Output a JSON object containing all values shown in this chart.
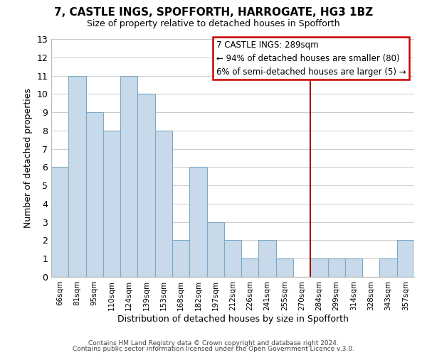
{
  "title": "7, CASTLE INGS, SPOFFORTH, HARROGATE, HG3 1BZ",
  "subtitle": "Size of property relative to detached houses in Spofforth",
  "xlabel": "Distribution of detached houses by size in Spofforth",
  "ylabel": "Number of detached properties",
  "bar_labels": [
    "66sqm",
    "81sqm",
    "95sqm",
    "110sqm",
    "124sqm",
    "139sqm",
    "153sqm",
    "168sqm",
    "182sqm",
    "197sqm",
    "212sqm",
    "226sqm",
    "241sqm",
    "255sqm",
    "270sqm",
    "284sqm",
    "299sqm",
    "314sqm",
    "328sqm",
    "343sqm",
    "357sqm"
  ],
  "bar_values": [
    6,
    11,
    9,
    8,
    11,
    10,
    8,
    2,
    6,
    3,
    2,
    1,
    2,
    1,
    0,
    1,
    1,
    1,
    0,
    1,
    2
  ],
  "bar_color": "#c8d9ea",
  "bar_edge_color": "#7aaac8",
  "marker_line_index": 15,
  "marker_label": "7 CASTLE INGS: 289sqm",
  "annotation_line1": "← 94% of detached houses are smaller (80)",
  "annotation_line2": "6% of semi-detached houses are larger (5) →",
  "annotation_box_color": "#ffffff",
  "annotation_box_edge": "#cc0000",
  "marker_line_color": "#aa0000",
  "ylim": [
    0,
    13
  ],
  "yticks": [
    0,
    1,
    2,
    3,
    4,
    5,
    6,
    7,
    8,
    9,
    10,
    11,
    12,
    13
  ],
  "footer1": "Contains HM Land Registry data © Crown copyright and database right 2024.",
  "footer2": "Contains public sector information licensed under the Open Government Licence v.3.0.",
  "background_color": "#ffffff",
  "grid_color": "#cccccc"
}
